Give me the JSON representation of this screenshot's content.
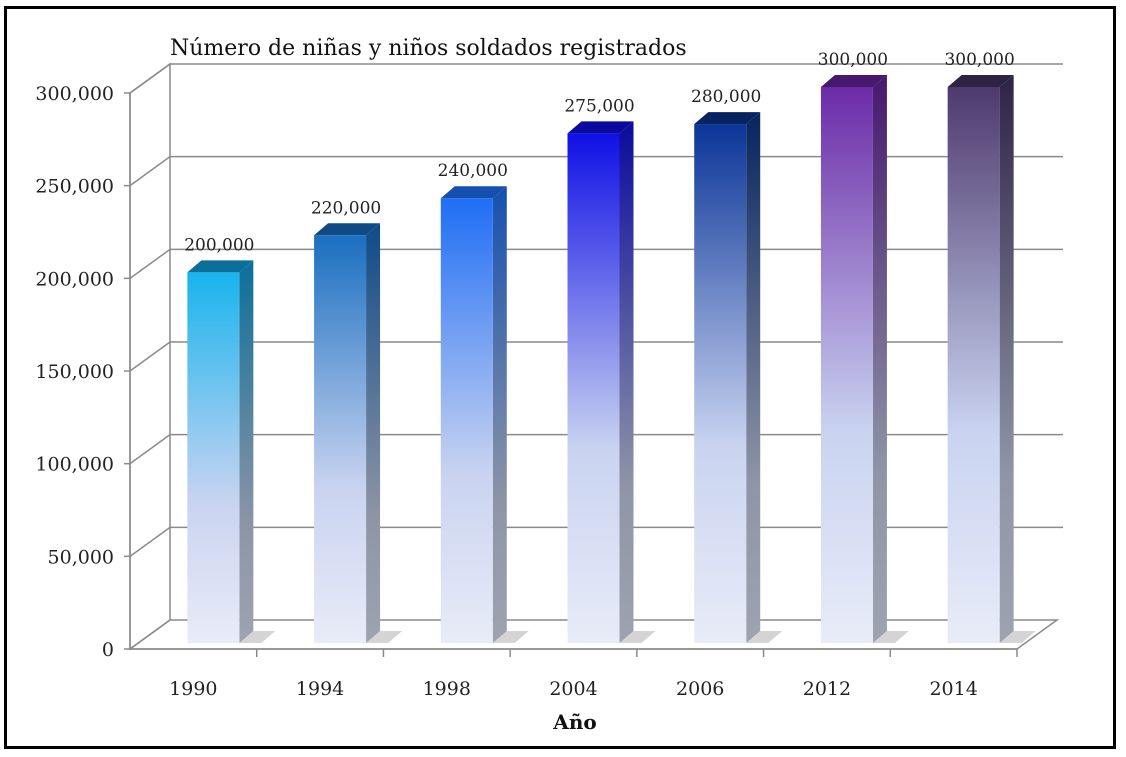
{
  "chart_data": {
    "type": "bar",
    "title": "Número de niñas y niños soldados registrados",
    "xlabel": "Año",
    "ylabel": "",
    "categories": [
      "1990",
      "1994",
      "1998",
      "2004",
      "2006",
      "2012",
      "2014"
    ],
    "values": [
      200000,
      220000,
      240000,
      275000,
      280000,
      300000,
      300000
    ],
    "value_labels": [
      "200,000",
      "220,000",
      "240,000",
      "275,000",
      "280,000",
      "300,000",
      "300,000"
    ],
    "ylim": [
      0,
      300000
    ],
    "yticks": [
      0,
      50000,
      100000,
      150000,
      200000,
      250000,
      300000
    ],
    "ytick_labels": [
      "0",
      "50,000",
      "100,000",
      "150,000",
      "200,000",
      "250,000",
      "300,000"
    ],
    "grid": true,
    "style": "3d-columns",
    "bar_colors": [
      "#18b4ee",
      "#1a6fc0",
      "#1f6ef5",
      "#1010e6",
      "#0b3598",
      "#6c2ba8",
      "#4e3a6e"
    ],
    "bar_base_color": "#e8ecf8",
    "side_colors": [
      "#0c6f99",
      "#0f4a86",
      "#1550b0",
      "#0a0a9e",
      "#07245f",
      "#46186e",
      "#2f2344"
    ]
  }
}
